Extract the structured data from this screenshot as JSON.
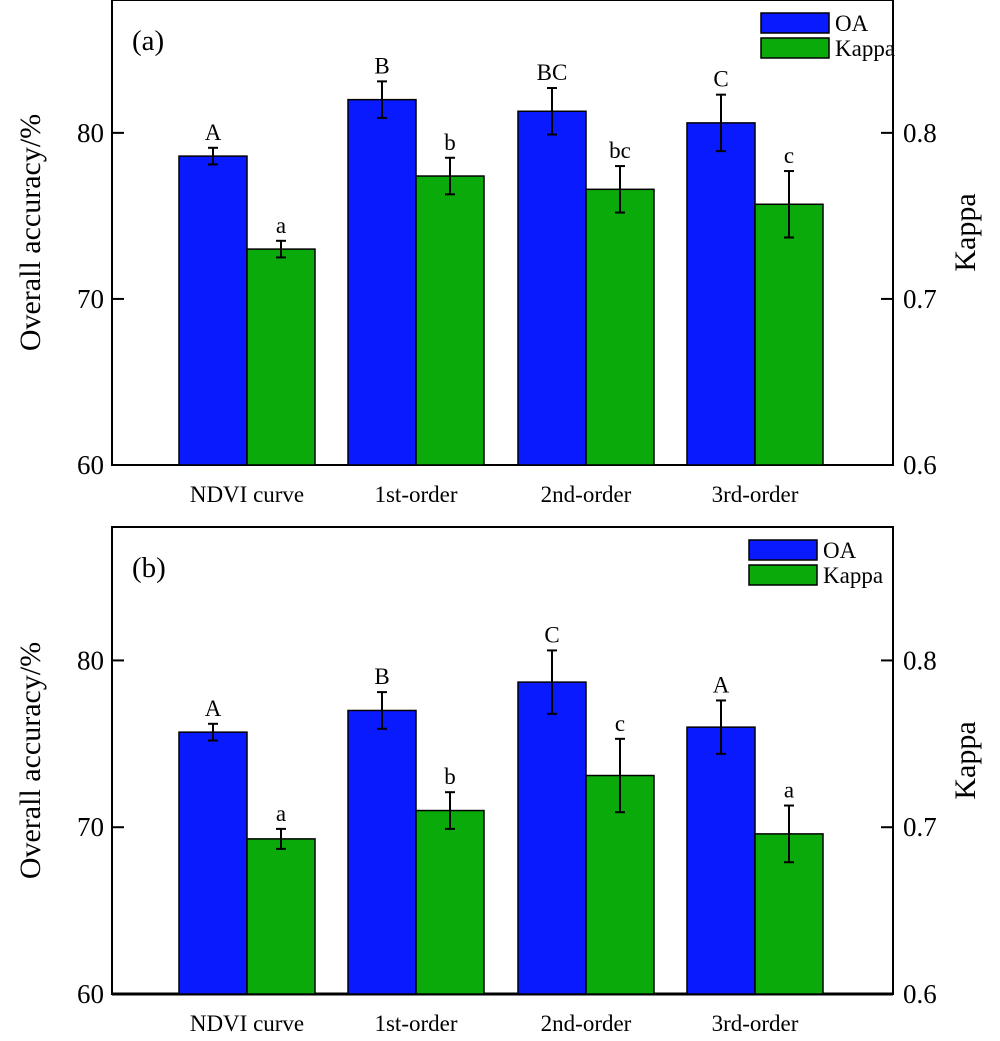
{
  "colors": {
    "OA": "#0a1aff",
    "Kappa": "#0aaa0a",
    "axis": "#000000"
  },
  "chart_data": [
    {
      "type": "bar",
      "panel_label": "(a)",
      "categories": [
        "NDVI curve",
        "1st-order",
        "2nd-order",
        "3rd-order"
      ],
      "ylabel": "Overall accuracy/%",
      "ylabel_right": "Kappa",
      "ylim": [
        60,
        88
      ],
      "ylim_right": [
        0.6,
        0.88
      ],
      "yticks": [
        "60",
        "70",
        "80"
      ],
      "yticks_right": [
        "0.6",
        "0.7",
        "0.8"
      ],
      "legend_position": "top-right",
      "series": [
        {
          "name": "OA",
          "axis": "left",
          "values": [
            78.6,
            82.0,
            81.3,
            80.6
          ],
          "errors": [
            0.5,
            1.1,
            1.4,
            1.7
          ],
          "labels": [
            "A",
            "B",
            "BC",
            "C"
          ]
        },
        {
          "name": "Kappa",
          "axis": "right",
          "values": [
            0.73,
            0.774,
            0.766,
            0.757
          ],
          "errors": [
            0.005,
            0.011,
            0.014,
            0.02
          ],
          "labels": [
            "a",
            "b",
            "bc",
            "c"
          ]
        }
      ]
    },
    {
      "type": "bar",
      "panel_label": "(b)",
      "categories": [
        "NDVI curve",
        "1st-order",
        "2nd-order",
        "3rd-order"
      ],
      "ylabel": "Overall accuracy/%",
      "ylabel_right": "Kappa",
      "ylim": [
        60,
        88
      ],
      "ylim_right": [
        0.6,
        0.88
      ],
      "yticks": [
        "60",
        "70",
        "80"
      ],
      "yticks_right": [
        "0.6",
        "0.7",
        "0.8"
      ],
      "legend_position": "top-right",
      "series": [
        {
          "name": "OA",
          "axis": "left",
          "values": [
            75.7,
            77.0,
            78.7,
            76.0
          ],
          "errors": [
            0.5,
            1.1,
            1.9,
            1.6
          ],
          "labels": [
            "A",
            "B",
            "C",
            "A"
          ]
        },
        {
          "name": "Kappa",
          "axis": "right",
          "values": [
            0.693,
            0.71,
            0.731,
            0.696
          ],
          "errors": [
            0.006,
            0.011,
            0.022,
            0.017
          ],
          "labels": [
            "a",
            "b",
            "c",
            "a"
          ]
        }
      ]
    }
  ]
}
